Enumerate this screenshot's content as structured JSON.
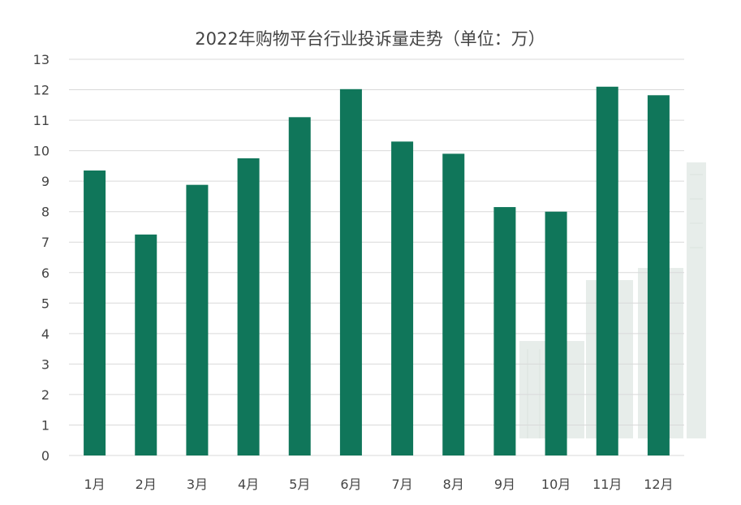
{
  "chart_data": {
    "type": "bar",
    "title": "2022年购物平台行业投诉量走势（单位：万）",
    "xlabel": "",
    "ylabel": "",
    "categories": [
      "1月",
      "2月",
      "3月",
      "4月",
      "5月",
      "6月",
      "7月",
      "8月",
      "9月",
      "10月",
      "11月",
      "12月"
    ],
    "values": [
      9.35,
      7.25,
      8.88,
      9.75,
      11.1,
      12.02,
      10.3,
      9.9,
      8.15,
      8.0,
      12.1,
      11.82
    ],
    "ylim": [
      0,
      13
    ],
    "yticks": [
      "0",
      "1",
      "2",
      "3",
      "4",
      "5",
      "6",
      "7",
      "8",
      "9",
      "10",
      "11",
      "12",
      "13"
    ],
    "grid": true,
    "legend": "none",
    "bar_color": "#10765a"
  }
}
